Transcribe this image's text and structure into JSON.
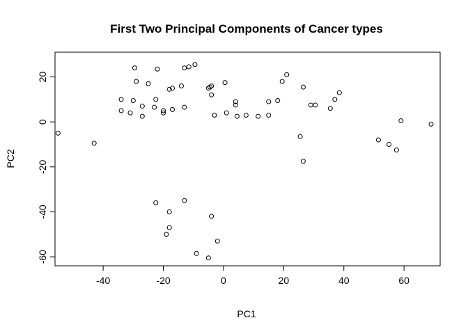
{
  "chart_data": {
    "type": "scatter",
    "title": "First Two Principal Components of Cancer types",
    "xlabel": "PC1",
    "ylabel": "PC2",
    "xlim": [
      -56,
      72
    ],
    "ylim": [
      -64,
      31
    ],
    "x_ticks": [
      -40,
      -20,
      0,
      20,
      40,
      60
    ],
    "y_ticks": [
      -60,
      -40,
      -20,
      0,
      20
    ],
    "grid": false,
    "legend": "none",
    "points": [
      {
        "x": -55,
        "y": -5
      },
      {
        "x": -43,
        "y": -9.5
      },
      {
        "x": -34,
        "y": 10
      },
      {
        "x": -34,
        "y": 5
      },
      {
        "x": -31,
        "y": 4
      },
      {
        "x": -30,
        "y": 9.5
      },
      {
        "x": -29.5,
        "y": 24
      },
      {
        "x": -29,
        "y": 18
      },
      {
        "x": -27,
        "y": 7
      },
      {
        "x": -27,
        "y": 2.5
      },
      {
        "x": -25,
        "y": 17
      },
      {
        "x": -23,
        "y": 6.5
      },
      {
        "x": -22.5,
        "y": 10
      },
      {
        "x": -22,
        "y": 23.5
      },
      {
        "x": -20,
        "y": 5
      },
      {
        "x": -20,
        "y": 4
      },
      {
        "x": -18,
        "y": 14.5
      },
      {
        "x": -17,
        "y": 15
      },
      {
        "x": -17,
        "y": 5.5
      },
      {
        "x": -14,
        "y": 16
      },
      {
        "x": -13,
        "y": 6.5
      },
      {
        "x": -13,
        "y": 24
      },
      {
        "x": -11.5,
        "y": 24.5
      },
      {
        "x": -9.5,
        "y": 25.5
      },
      {
        "x": -5,
        "y": 15
      },
      {
        "x": -4.5,
        "y": 15.5
      },
      {
        "x": -4,
        "y": 16
      },
      {
        "x": -4,
        "y": 12
      },
      {
        "x": -3,
        "y": 3
      },
      {
        "x": 0.5,
        "y": 17.5
      },
      {
        "x": 1,
        "y": 4
      },
      {
        "x": 4,
        "y": 9
      },
      {
        "x": 4,
        "y": 7.5
      },
      {
        "x": 4.5,
        "y": 2.5
      },
      {
        "x": 7.5,
        "y": 3
      },
      {
        "x": 11.5,
        "y": 2.5
      },
      {
        "x": 15,
        "y": 9
      },
      {
        "x": 15,
        "y": 3
      },
      {
        "x": 18,
        "y": 9.5
      },
      {
        "x": 19.5,
        "y": 18
      },
      {
        "x": 21,
        "y": 21
      },
      {
        "x": 25.5,
        "y": -6.5
      },
      {
        "x": 26.5,
        "y": 15.5
      },
      {
        "x": 26.5,
        "y": -17.5
      },
      {
        "x": 29,
        "y": 7.5
      },
      {
        "x": 30.5,
        "y": 7.5
      },
      {
        "x": 35.5,
        "y": 6
      },
      {
        "x": 37,
        "y": 10
      },
      {
        "x": 38.5,
        "y": 13
      },
      {
        "x": 51.5,
        "y": -8
      },
      {
        "x": 55,
        "y": -10
      },
      {
        "x": 57.5,
        "y": -12.5
      },
      {
        "x": 59,
        "y": 0.5
      },
      {
        "x": 69,
        "y": -1
      },
      {
        "x": -22.5,
        "y": -36
      },
      {
        "x": -18,
        "y": -40
      },
      {
        "x": -13,
        "y": -35
      },
      {
        "x": -4,
        "y": -42
      },
      {
        "x": -18,
        "y": -47
      },
      {
        "x": -19,
        "y": -50
      },
      {
        "x": -2,
        "y": -53
      },
      {
        "x": -9,
        "y": -58.5
      },
      {
        "x": -5,
        "y": -60.5
      }
    ]
  }
}
